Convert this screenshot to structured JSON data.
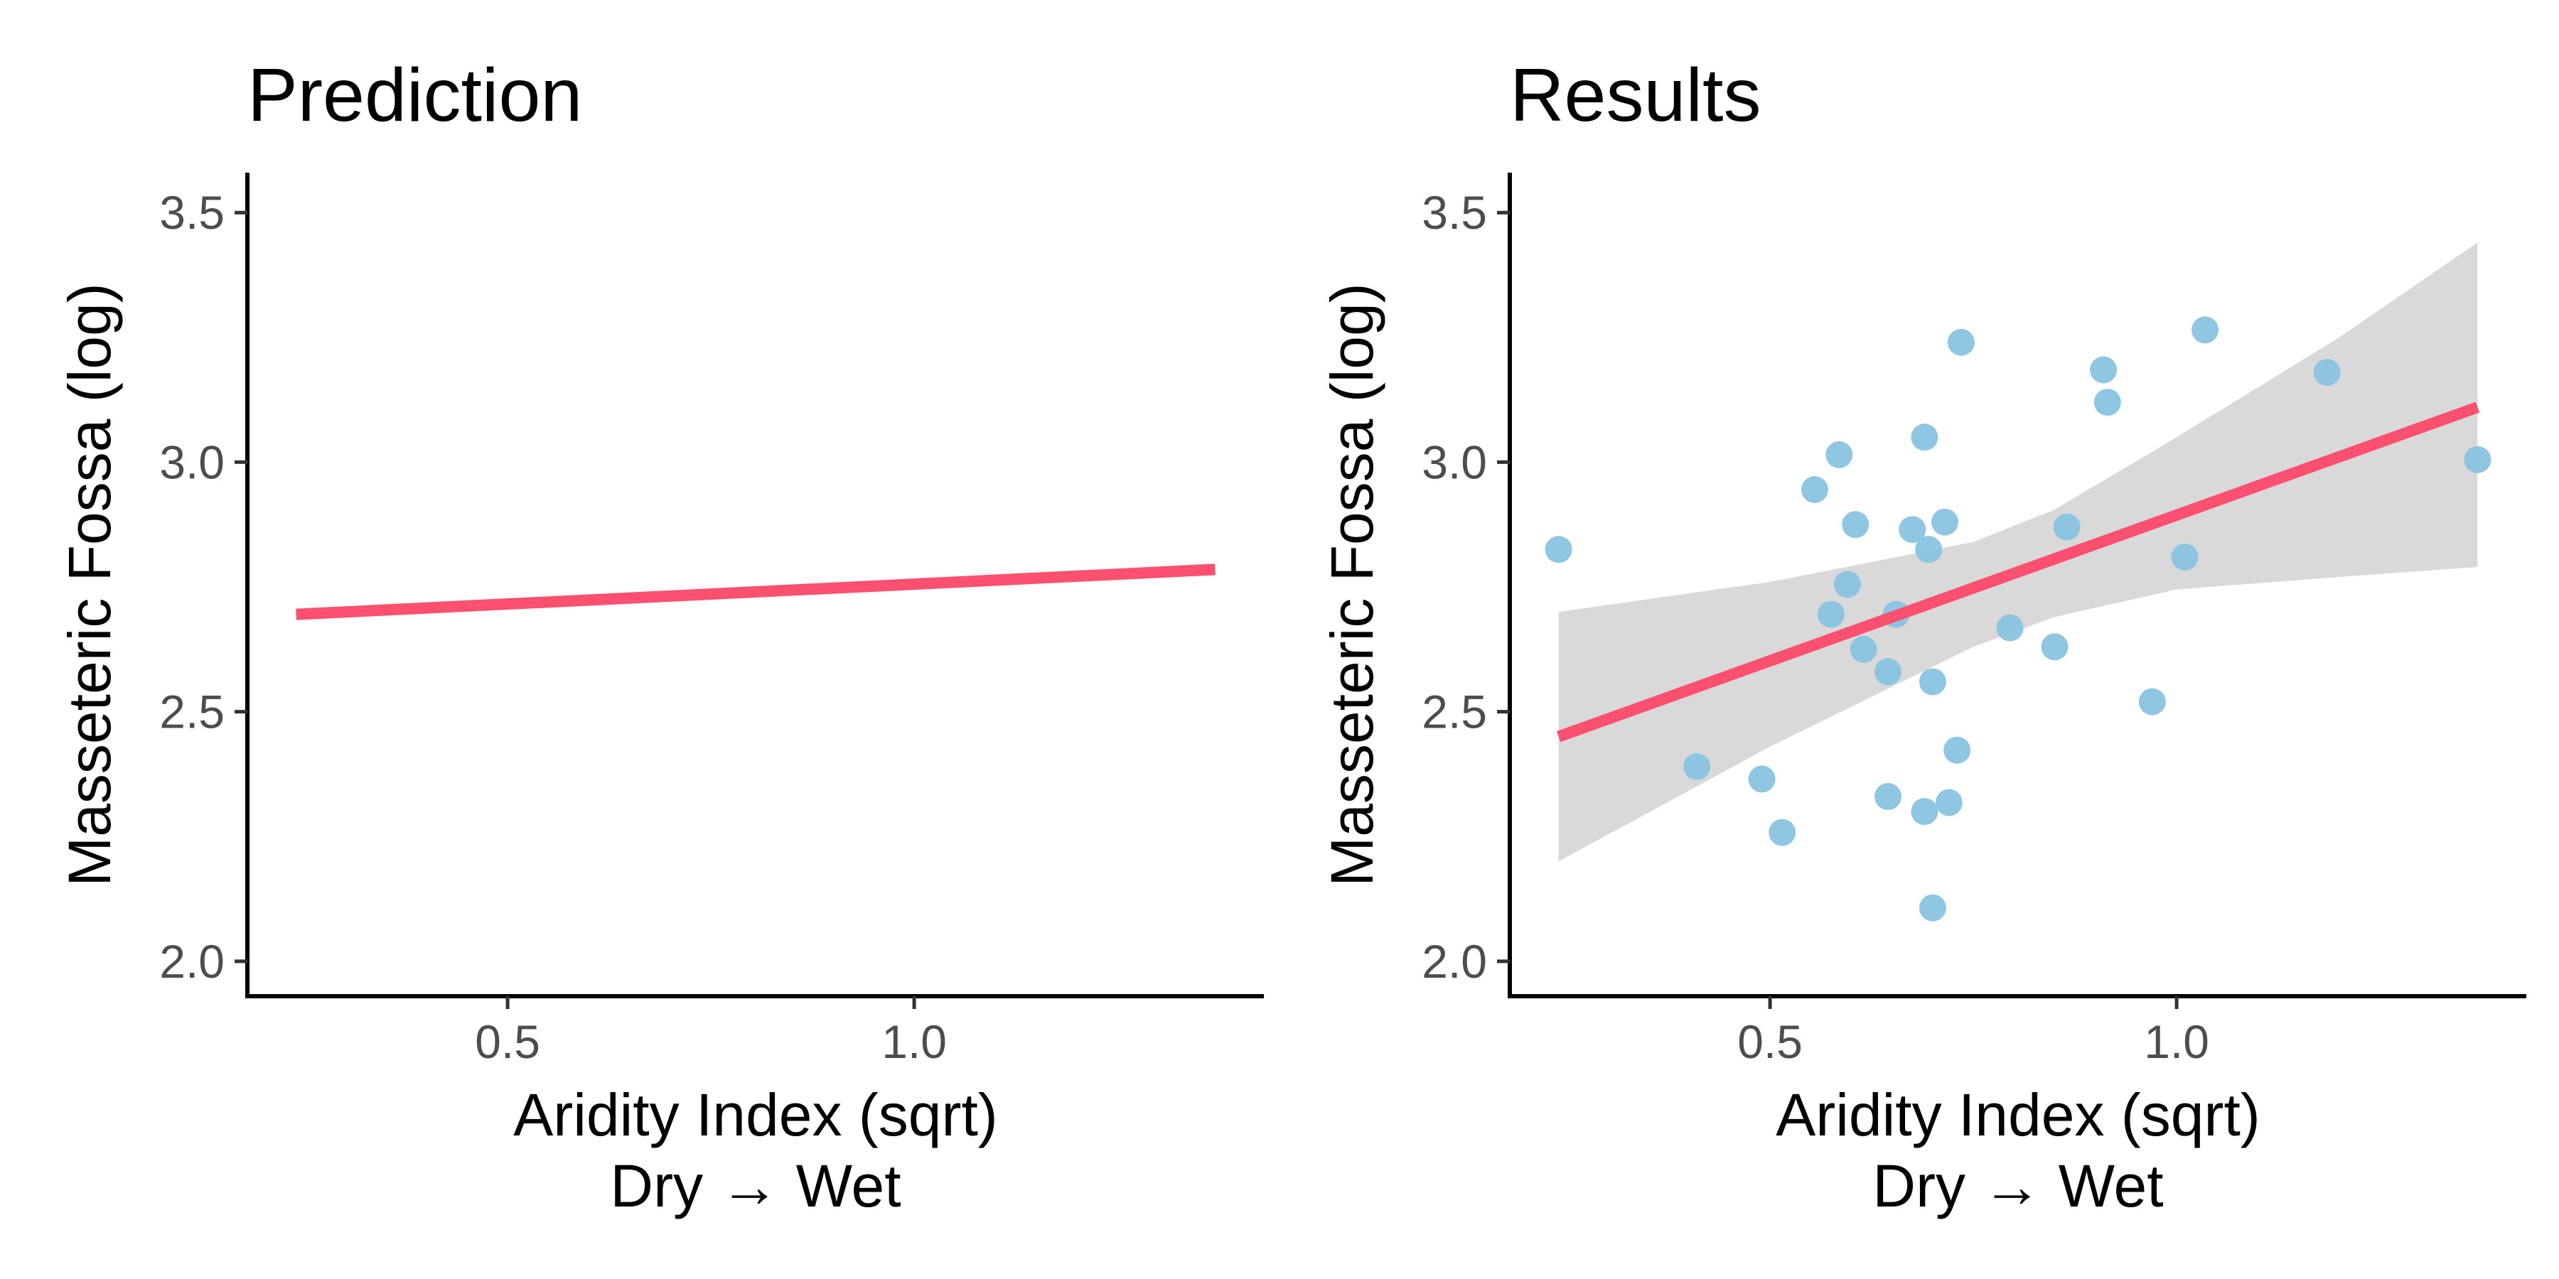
{
  "chart_data": [
    {
      "type": "line",
      "title": "Prediction",
      "xlabel": "Aridity Index (sqrt)",
      "xlabel_line2": "Dry → Wet",
      "ylabel": "Masseteric Fossa (log)",
      "xlim": [
        0.18,
        1.43
      ],
      "ylim": [
        1.93,
        3.58
      ],
      "x_ticks": [
        0.5,
        1.0
      ],
      "x_tick_labels": [
        "0.5",
        "1.0"
      ],
      "y_ticks": [
        2.0,
        2.5,
        3.0,
        3.5
      ],
      "y_tick_labels": [
        "2.0",
        "2.5",
        "3.0",
        "3.5"
      ],
      "grid": false,
      "line": {
        "x": [
          0.24,
          1.37
        ],
        "y": [
          2.695,
          2.785
        ],
        "color": "#fb506f"
      }
    },
    {
      "type": "scatter",
      "title": "Results",
      "xlabel": "Aridity Index (sqrt)",
      "xlabel_line2": "Dry → Wet",
      "ylabel": "Masseteric Fossa (log)",
      "xlim": [
        0.18,
        1.43
      ],
      "ylim": [
        1.93,
        3.58
      ],
      "x_ticks": [
        0.5,
        1.0
      ],
      "x_tick_labels": [
        "0.5",
        "1.0"
      ],
      "y_ticks": [
        2.0,
        2.5,
        3.0,
        3.5
      ],
      "y_tick_labels": [
        "2.0",
        "2.5",
        "3.0",
        "3.5"
      ],
      "grid": false,
      "point_color": "#89c4e1",
      "points": [
        [
          0.24,
          2.825
        ],
        [
          0.41,
          2.39
        ],
        [
          0.49,
          2.365
        ],
        [
          0.515,
          2.258
        ],
        [
          0.555,
          2.945
        ],
        [
          0.575,
          2.695
        ],
        [
          0.585,
          3.015
        ],
        [
          0.595,
          2.755
        ],
        [
          0.605,
          2.875
        ],
        [
          0.615,
          2.625
        ],
        [
          0.645,
          2.58
        ],
        [
          0.645,
          2.33
        ],
        [
          0.655,
          2.695
        ],
        [
          0.675,
          2.865
        ],
        [
          0.69,
          3.05
        ],
        [
          0.69,
          2.3
        ],
        [
          0.695,
          2.825
        ],
        [
          0.7,
          2.56
        ],
        [
          0.7,
          2.107
        ],
        [
          0.715,
          2.88
        ],
        [
          0.72,
          2.318
        ],
        [
          0.73,
          2.423
        ],
        [
          0.735,
          3.24
        ],
        [
          0.795,
          2.668
        ],
        [
          0.85,
          2.63
        ],
        [
          0.865,
          2.87
        ],
        [
          0.91,
          3.185
        ],
        [
          0.915,
          3.12
        ],
        [
          0.97,
          2.52
        ],
        [
          1.01,
          2.81
        ],
        [
          1.035,
          3.265
        ],
        [
          1.185,
          3.18
        ],
        [
          1.37,
          3.005
        ]
      ],
      "fit": {
        "x": [
          0.24,
          1.37
        ],
        "y": [
          2.45,
          3.11
        ],
        "color": "#fb506f"
      },
      "confidence_band": {
        "x": [
          0.24,
          0.5,
          0.75,
          0.85,
          1.0,
          1.2,
          1.37
        ],
        "lower": [
          2.2,
          2.43,
          2.63,
          2.69,
          2.745,
          2.77,
          2.79
        ],
        "upper": [
          2.7,
          2.76,
          2.84,
          2.905,
          3.05,
          3.25,
          3.44
        ],
        "color": "#d9d9d9"
      }
    }
  ]
}
